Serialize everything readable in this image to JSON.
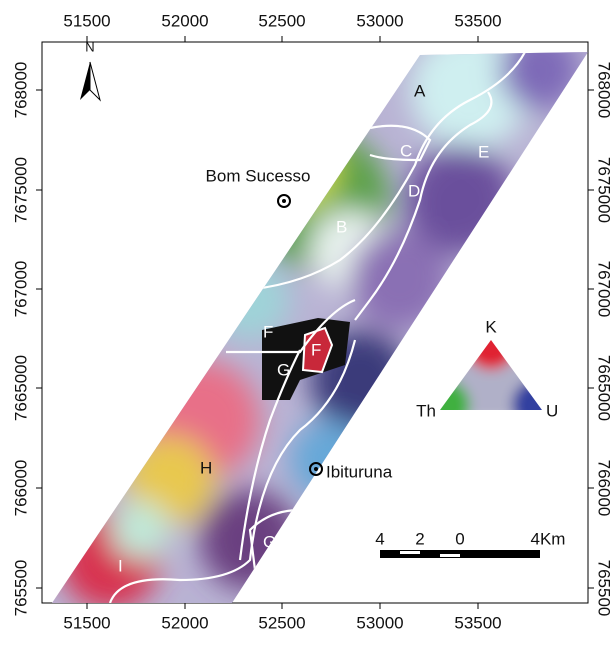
{
  "map": {
    "top_labels": [
      "51500",
      "52000",
      "52500",
      "53000",
      "53500"
    ],
    "bottom_labels": [
      "51500",
      "52000",
      "52500",
      "53000",
      "53500"
    ],
    "side_labels": [
      "768000",
      "7675000",
      "767000",
      "7665000",
      "766000",
      "765500"
    ],
    "north": "N",
    "places": [
      "Bom Sucesso",
      "Ibituruna"
    ],
    "units": [
      "A",
      "B",
      "C",
      "D",
      "E",
      "F",
      "F",
      "G",
      "G",
      "H",
      "I"
    ],
    "legend": {
      "top": "K",
      "left": "Th",
      "right": "U"
    },
    "scale": [
      "4",
      "2",
      "0",
      "4Km"
    ]
  }
}
